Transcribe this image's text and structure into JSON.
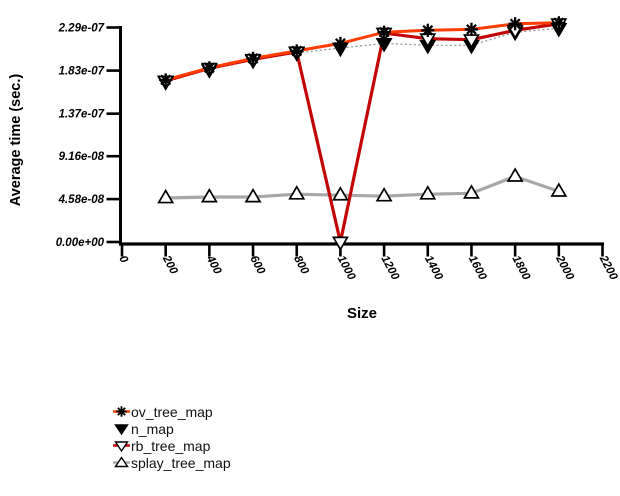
{
  "figure": {
    "background": "#ffffff",
    "text_color": "#000000"
  },
  "chart_data": {
    "type": "line",
    "title": "",
    "xlabel": "Size",
    "ylabel": "Average time (sec.)",
    "xlim": [
      0,
      2200
    ],
    "ylim": [
      0,
      2.29e-07
    ],
    "grid": false,
    "legend_position": "bottom-left",
    "x_tick_values": [
      0,
      200,
      400,
      600,
      800,
      1000,
      1200,
      1400,
      1600,
      1800,
      2000,
      2200
    ],
    "x_tick_labels": [
      "0",
      "200",
      "400",
      "600",
      "800",
      "1000",
      "1200",
      "1400",
      "1600",
      "1800",
      "2000",
      "2200"
    ],
    "y_tick_values": [
      0,
      4.58e-08,
      9.16e-08,
      1.37e-07,
      1.83e-07,
      2.29e-07
    ],
    "y_tick_labels": [
      "0.00e+00",
      "4.58e-08",
      "9.16e-08",
      "1.37e-07",
      "1.83e-07",
      "2.29e-07"
    ],
    "x": [
      200,
      400,
      600,
      800,
      1000,
      1200,
      1400,
      1600,
      1800,
      2000
    ],
    "series": [
      {
        "name": "splay_tree_map",
        "color": "#a8a8a8",
        "line_style": "solid",
        "line_width": 3.2,
        "marker": "triangle-up-open",
        "marker_color": "#000000",
        "values": [
          4.7e-08,
          4.8e-08,
          4.8e-08,
          5.1e-08,
          5e-08,
          4.9e-08,
          5.1e-08,
          5.2e-08,
          7e-08,
          5.4e-08
        ]
      },
      {
        "name": "n_map",
        "color": "#909090",
        "line_style": "dotted",
        "line_width": 1.2,
        "marker": "triangle-down-filled",
        "marker_color": "#000000",
        "values": [
          1.71e-07,
          1.84e-07,
          1.94e-07,
          2.02e-07,
          2.07e-07,
          2.12e-07,
          2.1e-07,
          2.1e-07,
          2.24e-07,
          2.28e-07
        ]
      },
      {
        "name": "rb_tree_map",
        "color": "#c40505",
        "line_style": "solid",
        "line_width": 3.2,
        "marker": "triangle-down-open",
        "marker_color": "#000000",
        "values": [
          1.72e-07,
          1.855e-07,
          1.95e-07,
          2.03e-07,
          0,
          2.23e-07,
          2.17e-07,
          2.16e-07,
          2.26e-07,
          2.33e-07
        ]
      },
      {
        "name": "ov_tree_map",
        "color": "#ff3c00",
        "line_style": "solid",
        "line_width": 3.0,
        "marker": "asterisk",
        "marker_color": "#000000",
        "values": [
          1.73e-07,
          1.86e-07,
          1.96e-07,
          2.04e-07,
          2.12e-07,
          2.24e-07,
          2.26e-07,
          2.27e-07,
          2.33e-07,
          2.34e-07
        ]
      }
    ],
    "legend_order": [
      "ov_tree_map",
      "n_map",
      "rb_tree_map",
      "splay_tree_map"
    ]
  }
}
